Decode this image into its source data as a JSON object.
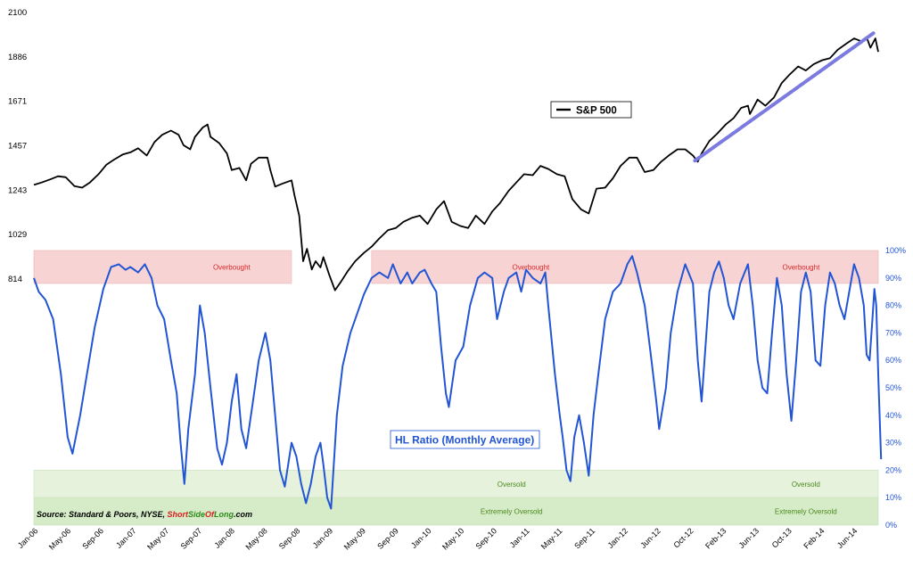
{
  "chart_data": {
    "type": "line",
    "left_axis": {
      "ticks": [
        2100,
        1886,
        1671,
        1457,
        1243,
        1029,
        814
      ],
      "range": [
        814,
        2100
      ]
    },
    "right_axis": {
      "ticks": [
        "100%",
        "90%",
        "80%",
        "70%",
        "60%",
        "50%",
        "40%",
        "30%",
        "20%",
        "10%",
        "0%"
      ],
      "range": [
        0,
        100
      ]
    },
    "x_ticks": [
      "Jan-06",
      "May-06",
      "Sep-06",
      "Jan-07",
      "May-07",
      "Sep-07",
      "Jan-08",
      "May-08",
      "Sep-08",
      "Jan-09",
      "May-09",
      "Sep-09",
      "Jan-10",
      "May-10",
      "Sep-10",
      "Jan-11",
      "May-11",
      "Sep-11",
      "Jan-12",
      "Jun-12",
      "Oct-12",
      "Feb-13",
      "Jun-13",
      "Oct-13",
      "Feb-14",
      "Jun-14"
    ],
    "x_range": [
      2006.0,
      2014.75
    ],
    "series": [
      {
        "name": "S&P 500",
        "axis": "left",
        "color": "#000000",
        "points": [
          [
            2006.0,
            1268
          ],
          [
            2006.08,
            1280
          ],
          [
            2006.17,
            1295
          ],
          [
            2006.25,
            1310
          ],
          [
            2006.33,
            1305
          ],
          [
            2006.42,
            1262
          ],
          [
            2006.5,
            1255
          ],
          [
            2006.58,
            1280
          ],
          [
            2006.67,
            1320
          ],
          [
            2006.75,
            1365
          ],
          [
            2006.83,
            1390
          ],
          [
            2006.92,
            1415
          ],
          [
            2007.0,
            1425
          ],
          [
            2007.08,
            1445
          ],
          [
            2007.17,
            1410
          ],
          [
            2007.25,
            1475
          ],
          [
            2007.33,
            1510
          ],
          [
            2007.42,
            1530
          ],
          [
            2007.5,
            1510
          ],
          [
            2007.55,
            1460
          ],
          [
            2007.62,
            1440
          ],
          [
            2007.67,
            1500
          ],
          [
            2007.75,
            1545
          ],
          [
            2007.8,
            1560
          ],
          [
            2007.83,
            1500
          ],
          [
            2007.92,
            1470
          ],
          [
            2008.0,
            1420
          ],
          [
            2008.05,
            1340
          ],
          [
            2008.13,
            1350
          ],
          [
            2008.2,
            1290
          ],
          [
            2008.25,
            1370
          ],
          [
            2008.33,
            1400
          ],
          [
            2008.42,
            1400
          ],
          [
            2008.45,
            1340
          ],
          [
            2008.5,
            1260
          ],
          [
            2008.58,
            1275
          ],
          [
            2008.67,
            1290
          ],
          [
            2008.7,
            1220
          ],
          [
            2008.75,
            1120
          ],
          [
            2008.79,
            900
          ],
          [
            2008.83,
            960
          ],
          [
            2008.88,
            860
          ],
          [
            2008.92,
            900
          ],
          [
            2008.97,
            870
          ],
          [
            2009.0,
            920
          ],
          [
            2009.06,
            835
          ],
          [
            2009.12,
            760
          ],
          [
            2009.18,
            800
          ],
          [
            2009.25,
            850
          ],
          [
            2009.33,
            900
          ],
          [
            2009.42,
            940
          ],
          [
            2009.5,
            970
          ],
          [
            2009.58,
            1010
          ],
          [
            2009.67,
            1050
          ],
          [
            2009.75,
            1060
          ],
          [
            2009.83,
            1090
          ],
          [
            2009.92,
            1110
          ],
          [
            2010.0,
            1120
          ],
          [
            2010.08,
            1080
          ],
          [
            2010.17,
            1150
          ],
          [
            2010.25,
            1190
          ],
          [
            2010.33,
            1090
          ],
          [
            2010.42,
            1070
          ],
          [
            2010.5,
            1060
          ],
          [
            2010.58,
            1120
          ],
          [
            2010.67,
            1080
          ],
          [
            2010.75,
            1140
          ],
          [
            2010.83,
            1180
          ],
          [
            2010.92,
            1240
          ],
          [
            2011.0,
            1280
          ],
          [
            2011.08,
            1320
          ],
          [
            2011.17,
            1315
          ],
          [
            2011.25,
            1360
          ],
          [
            2011.33,
            1345
          ],
          [
            2011.42,
            1320
          ],
          [
            2011.5,
            1310
          ],
          [
            2011.58,
            1200
          ],
          [
            2011.67,
            1150
          ],
          [
            2011.75,
            1130
          ],
          [
            2011.83,
            1250
          ],
          [
            2011.92,
            1255
          ],
          [
            2012.0,
            1300
          ],
          [
            2012.08,
            1360
          ],
          [
            2012.17,
            1400
          ],
          [
            2012.25,
            1400
          ],
          [
            2012.33,
            1330
          ],
          [
            2012.42,
            1340
          ],
          [
            2012.5,
            1380
          ],
          [
            2012.58,
            1410
          ],
          [
            2012.67,
            1440
          ],
          [
            2012.75,
            1440
          ],
          [
            2012.83,
            1410
          ],
          [
            2012.88,
            1380
          ],
          [
            2012.92,
            1420
          ],
          [
            2013.0,
            1480
          ],
          [
            2013.08,
            1515
          ],
          [
            2013.17,
            1560
          ],
          [
            2013.25,
            1590
          ],
          [
            2013.33,
            1640
          ],
          [
            2013.4,
            1650
          ],
          [
            2013.42,
            1610
          ],
          [
            2013.5,
            1680
          ],
          [
            2013.58,
            1650
          ],
          [
            2013.67,
            1690
          ],
          [
            2013.75,
            1760
          ],
          [
            2013.83,
            1800
          ],
          [
            2013.92,
            1840
          ],
          [
            2014.0,
            1820
          ],
          [
            2014.08,
            1850
          ],
          [
            2014.17,
            1870
          ],
          [
            2014.25,
            1880
          ],
          [
            2014.33,
            1920
          ],
          [
            2014.42,
            1950
          ],
          [
            2014.5,
            1975
          ],
          [
            2014.58,
            1960
          ],
          [
            2014.63,
            1980
          ],
          [
            2014.67,
            1930
          ],
          [
            2014.72,
            1975
          ],
          [
            2014.75,
            1910
          ]
        ]
      },
      {
        "name": "HL Ratio (Monthly Average)",
        "axis": "right",
        "color": "#2255d4",
        "points": [
          [
            2006.0,
            90
          ],
          [
            2006.05,
            85
          ],
          [
            2006.12,
            82
          ],
          [
            2006.2,
            75
          ],
          [
            2006.28,
            55
          ],
          [
            2006.35,
            32
          ],
          [
            2006.4,
            26
          ],
          [
            2006.48,
            40
          ],
          [
            2006.55,
            55
          ],
          [
            2006.63,
            72
          ],
          [
            2006.72,
            86
          ],
          [
            2006.8,
            94
          ],
          [
            2006.88,
            95
          ],
          [
            2006.95,
            93
          ],
          [
            2007.0,
            94
          ],
          [
            2007.08,
            92
          ],
          [
            2007.15,
            95
          ],
          [
            2007.22,
            90
          ],
          [
            2007.28,
            80
          ],
          [
            2007.35,
            75
          ],
          [
            2007.42,
            60
          ],
          [
            2007.48,
            48
          ],
          [
            2007.52,
            30
          ],
          [
            2007.56,
            15
          ],
          [
            2007.6,
            35
          ],
          [
            2007.67,
            55
          ],
          [
            2007.72,
            80
          ],
          [
            2007.77,
            70
          ],
          [
            2007.83,
            50
          ],
          [
            2007.9,
            28
          ],
          [
            2007.95,
            22
          ],
          [
            2008.0,
            30
          ],
          [
            2008.05,
            45
          ],
          [
            2008.1,
            55
          ],
          [
            2008.15,
            35
          ],
          [
            2008.2,
            28
          ],
          [
            2008.27,
            45
          ],
          [
            2008.33,
            60
          ],
          [
            2008.4,
            70
          ],
          [
            2008.45,
            60
          ],
          [
            2008.5,
            40
          ],
          [
            2008.55,
            20
          ],
          [
            2008.6,
            14
          ],
          [
            2008.67,
            30
          ],
          [
            2008.72,
            25
          ],
          [
            2008.77,
            15
          ],
          [
            2008.82,
            8
          ],
          [
            2008.87,
            15
          ],
          [
            2008.92,
            25
          ],
          [
            2008.97,
            30
          ],
          [
            2009.0,
            22
          ],
          [
            2009.04,
            10
          ],
          [
            2009.08,
            6
          ],
          [
            2009.14,
            40
          ],
          [
            2009.2,
            58
          ],
          [
            2009.28,
            70
          ],
          [
            2009.35,
            77
          ],
          [
            2009.42,
            84
          ],
          [
            2009.5,
            90
          ],
          [
            2009.58,
            92
          ],
          [
            2009.67,
            90
          ],
          [
            2009.72,
            95
          ],
          [
            2009.8,
            88
          ],
          [
            2009.87,
            92
          ],
          [
            2009.92,
            88
          ],
          [
            2010.0,
            92
          ],
          [
            2010.05,
            93
          ],
          [
            2010.12,
            88
          ],
          [
            2010.17,
            85
          ],
          [
            2010.22,
            65
          ],
          [
            2010.27,
            48
          ],
          [
            2010.3,
            43
          ],
          [
            2010.37,
            60
          ],
          [
            2010.45,
            65
          ],
          [
            2010.52,
            80
          ],
          [
            2010.6,
            90
          ],
          [
            2010.67,
            92
          ],
          [
            2010.75,
            90
          ],
          [
            2010.8,
            75
          ],
          [
            2010.87,
            85
          ],
          [
            2010.92,
            90
          ],
          [
            2011.0,
            92
          ],
          [
            2011.05,
            85
          ],
          [
            2011.1,
            93
          ],
          [
            2011.17,
            90
          ],
          [
            2011.25,
            88
          ],
          [
            2011.3,
            92
          ],
          [
            2011.33,
            80
          ],
          [
            2011.4,
            55
          ],
          [
            2011.45,
            40
          ],
          [
            2011.48,
            32
          ],
          [
            2011.52,
            20
          ],
          [
            2011.56,
            16
          ],
          [
            2011.6,
            32
          ],
          [
            2011.65,
            40
          ],
          [
            2011.7,
            30
          ],
          [
            2011.75,
            18
          ],
          [
            2011.8,
            40
          ],
          [
            2011.85,
            55
          ],
          [
            2011.92,
            75
          ],
          [
            2012.0,
            85
          ],
          [
            2012.08,
            88
          ],
          [
            2012.15,
            95
          ],
          [
            2012.2,
            98
          ],
          [
            2012.25,
            92
          ],
          [
            2012.33,
            80
          ],
          [
            2012.4,
            60
          ],
          [
            2012.45,
            45
          ],
          [
            2012.48,
            35
          ],
          [
            2012.55,
            50
          ],
          [
            2012.6,
            70
          ],
          [
            2012.67,
            85
          ],
          [
            2012.75,
            95
          ],
          [
            2012.83,
            88
          ],
          [
            2012.88,
            60
          ],
          [
            2012.92,
            45
          ],
          [
            2013.0,
            85
          ],
          [
            2013.05,
            92
          ],
          [
            2013.1,
            96
          ],
          [
            2013.15,
            90
          ],
          [
            2013.2,
            80
          ],
          [
            2013.25,
            75
          ],
          [
            2013.32,
            88
          ],
          [
            2013.4,
            95
          ],
          [
            2013.45,
            80
          ],
          [
            2013.5,
            60
          ],
          [
            2013.55,
            50
          ],
          [
            2013.6,
            48
          ],
          [
            2013.65,
            70
          ],
          [
            2013.7,
            90
          ],
          [
            2013.75,
            80
          ],
          [
            2013.8,
            55
          ],
          [
            2013.85,
            38
          ],
          [
            2013.9,
            60
          ],
          [
            2013.95,
            85
          ],
          [
            2014.0,
            92
          ],
          [
            2014.05,
            85
          ],
          [
            2014.1,
            60
          ],
          [
            2014.15,
            58
          ],
          [
            2014.2,
            80
          ],
          [
            2014.25,
            92
          ],
          [
            2014.3,
            88
          ],
          [
            2014.35,
            80
          ],
          [
            2014.4,
            75
          ],
          [
            2014.45,
            85
          ],
          [
            2014.5,
            95
          ],
          [
            2014.55,
            90
          ],
          [
            2014.6,
            80
          ],
          [
            2014.63,
            62
          ],
          [
            2014.66,
            60
          ],
          [
            2014.69,
            75
          ],
          [
            2014.71,
            86
          ],
          [
            2014.73,
            80
          ],
          [
            2014.75,
            55
          ],
          [
            2014.78,
            24
          ]
        ]
      }
    ],
    "trendline": {
      "axis": "left",
      "color": "#7a7ae0",
      "from": [
        2012.85,
        1385
      ],
      "to": [
        2014.7,
        2000
      ]
    },
    "bands": [
      {
        "label": "Overbought",
        "range": [
          88,
          100
        ],
        "color": "#f8d3d3",
        "label_color": "#d82a2a",
        "from_to": [
          [
            2006.0,
            2008.67
          ],
          [
            2009.5,
            2014.75
          ]
        ],
        "label_x": [
          2008.05,
          2011.15,
          2013.95
        ]
      },
      {
        "label": "Oversold",
        "range": [
          10,
          20
        ],
        "color": "#e6f2dc",
        "label_color": "#4a8a1e",
        "from_to": [
          [
            2006.0,
            2014.75
          ]
        ],
        "label_x": [
          2010.95,
          2014.0
        ]
      },
      {
        "label": "Extremely Oversold",
        "range": [
          0,
          10
        ],
        "color": "#d6ecc8",
        "label_color": "#4a8a1e",
        "from_to": [
          [
            2006.0,
            2014.75
          ]
        ],
        "label_x": [
          2010.95,
          2014.0
        ]
      }
    ],
    "legends": [
      "S&P 500",
      "HL Ratio (Monthly Average)"
    ],
    "source": {
      "prefix": "Source: Standard & Poors, NYSE, ",
      "brand_short": "Short",
      "brand_side": "Side",
      "brand_of": "Of",
      "brand_long": "Long",
      "brand_suffix": ".com"
    },
    "colors": {
      "left_axis_text": "#000000",
      "right_axis_text": "#2255d4",
      "brand_red": "#d81e1e",
      "brand_green": "#2e8b1a"
    }
  }
}
